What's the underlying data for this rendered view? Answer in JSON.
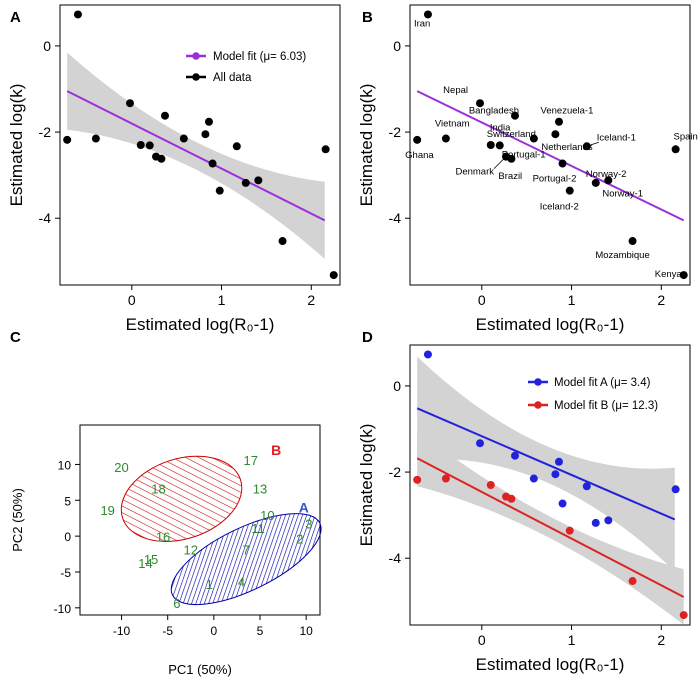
{
  "chart_data": [
    {
      "panel": "A",
      "type": "scatter",
      "xlabel": "Estimated log(R₀-1)",
      "ylabel": "Estimated log(k)",
      "xticks": [
        0,
        1,
        2
      ],
      "yticks": [
        0,
        -2,
        -4
      ],
      "xlim": [
        -0.8,
        2.32
      ],
      "ylim": [
        -5.55,
        0.95
      ],
      "legend": {
        "position": "top-right",
        "fit": "Model fit (μ= 6.03)",
        "data": "All data"
      },
      "fit_line": {
        "x": [
          -0.72,
          2.15
        ],
        "y": [
          -1.05,
          -4.05
        ],
        "color": "#9b30d9"
      },
      "points": [
        {
          "x": -0.72,
          "y": -2.18
        },
        {
          "x": -0.6,
          "y": 0.73
        },
        {
          "x": -0.4,
          "y": -2.15
        },
        {
          "x": -0.02,
          "y": -1.33
        },
        {
          "x": 0.1,
          "y": -2.3
        },
        {
          "x": 0.2,
          "y": -2.31
        },
        {
          "x": 0.27,
          "y": -2.57
        },
        {
          "x": 0.33,
          "y": -2.62
        },
        {
          "x": 0.37,
          "y": -1.62
        },
        {
          "x": 0.58,
          "y": -2.15
        },
        {
          "x": 0.82,
          "y": -2.05
        },
        {
          "x": 0.86,
          "y": -1.76
        },
        {
          "x": 0.9,
          "y": -2.73
        },
        {
          "x": 0.98,
          "y": -3.36
        },
        {
          "x": 1.17,
          "y": -2.33
        },
        {
          "x": 1.27,
          "y": -3.18
        },
        {
          "x": 1.41,
          "y": -3.12
        },
        {
          "x": 1.68,
          "y": -4.53
        },
        {
          "x": 2.16,
          "y": -2.4
        },
        {
          "x": 2.25,
          "y": -5.32
        }
      ]
    },
    {
      "panel": "B",
      "type": "scatter",
      "xlabel": "Estimated log(R₀-1)",
      "ylabel": "Estimated log(k)",
      "xticks": [
        0,
        1,
        2
      ],
      "yticks": [
        0,
        -2,
        -4
      ],
      "xlim": [
        -0.8,
        2.32
      ],
      "ylim": [
        -5.55,
        0.95
      ],
      "fit_line": {
        "x": [
          -0.72,
          2.25
        ],
        "y": [
          -1.05,
          -4.05
        ],
        "color": "#9b30d9"
      },
      "points": [
        {
          "x": -0.6,
          "y": 0.73,
          "label": "Iran"
        },
        {
          "x": -0.72,
          "y": -2.18,
          "label": "Ghana"
        },
        {
          "x": -0.4,
          "y": -2.15,
          "label": "Vietnam"
        },
        {
          "x": -0.02,
          "y": -1.33,
          "label": "Nepal"
        },
        {
          "x": 0.37,
          "y": -1.62,
          "label": "Bangladesh"
        },
        {
          "x": 0.1,
          "y": -2.3,
          "label": "Switzerland"
        },
        {
          "x": 0.58,
          "y": -2.15,
          "label": "India"
        },
        {
          "x": 0.2,
          "y": -2.31,
          "label": "Portugal-1"
        },
        {
          "x": 0.27,
          "y": -2.57,
          "label": "Denmark"
        },
        {
          "x": 0.33,
          "y": -2.62,
          "label": "Brazil"
        },
        {
          "x": 0.86,
          "y": -1.76,
          "label": "Venezuela-1"
        },
        {
          "x": 0.82,
          "y": -2.05,
          "label": "Netherlands"
        },
        {
          "x": 0.9,
          "y": -2.73,
          "label": "Portugal-2"
        },
        {
          "x": 0.98,
          "y": -3.36,
          "label": "Iceland-2"
        },
        {
          "x": 1.17,
          "y": -2.33,
          "label": "Iceland-1"
        },
        {
          "x": 1.27,
          "y": -3.18,
          "label": "Norway-2"
        },
        {
          "x": 1.41,
          "y": -3.12,
          "label": "Norway-1"
        },
        {
          "x": 1.68,
          "y": -4.53,
          "label": "Mozambique"
        },
        {
          "x": 2.16,
          "y": -2.4,
          "label": "Spain"
        },
        {
          "x": 2.25,
          "y": -5.32,
          "label": "Kenya"
        }
      ]
    },
    {
      "panel": "C",
      "type": "scatter",
      "xlabel": "PC1 (50%)",
      "ylabel": "PC2 (50%)",
      "xticks": [
        -10,
        -5,
        0,
        5,
        10
      ],
      "yticks": [
        10,
        5,
        0,
        -5,
        -10
      ],
      "xlim": [
        -14.5,
        11.5
      ],
      "ylim": [
        -11,
        15.5
      ],
      "group_labels": {
        "A": "A",
        "B": "B"
      },
      "points": [
        {
          "label": "20",
          "x": -10,
          "y": 9.5
        },
        {
          "label": "18",
          "x": -6,
          "y": 6.5
        },
        {
          "label": "19",
          "x": -11.5,
          "y": 3.5
        },
        {
          "label": "17",
          "x": 4,
          "y": 10.5
        },
        {
          "label": "13",
          "x": 5,
          "y": 6.5
        },
        {
          "label": "16",
          "x": -5.5,
          "y": -0.2
        },
        {
          "label": "15",
          "x": -6.8,
          "y": -3.3
        },
        {
          "label": "14",
          "x": -7.4,
          "y": -3.9
        },
        {
          "label": "12",
          "x": -2.5,
          "y": -2.0
        },
        {
          "label": "10",
          "x": 5.8,
          "y": 2.8
        },
        {
          "label": "11",
          "x": 4.8,
          "y": 1.0
        },
        {
          "label": "3",
          "x": 10.3,
          "y": 1.6
        },
        {
          "label": "2",
          "x": 9.3,
          "y": -0.5
        },
        {
          "label": "7",
          "x": 3.5,
          "y": -2.0
        },
        {
          "label": "4",
          "x": 3.0,
          "y": -6.5
        },
        {
          "label": "1",
          "x": -0.5,
          "y": -6.8
        },
        {
          "label": "6",
          "x": -4.0,
          "y": -9.5
        }
      ]
    },
    {
      "panel": "D",
      "type": "scatter",
      "xlabel": "Estimated log(R₀-1)",
      "ylabel": "Estimated log(k)",
      "xticks": [
        0,
        1,
        2
      ],
      "yticks": [
        0,
        -2,
        -4
      ],
      "xlim": [
        -0.8,
        2.32
      ],
      "ylim": [
        -5.55,
        0.95
      ],
      "legend": {
        "position": "top-right",
        "fitA": "Model fit A (μ= 3.4)",
        "fitB": "Model fit B (μ= 12.3)"
      },
      "series": [
        {
          "name": "A",
          "color": "#2222dd",
          "fit": {
            "x": [
              -0.72,
              2.15
            ],
            "y": [
              -0.52,
              -3.1
            ]
          },
          "points": [
            {
              "x": -0.6,
              "y": 0.73
            },
            {
              "x": -0.02,
              "y": -1.33
            },
            {
              "x": 0.37,
              "y": -1.62
            },
            {
              "x": 0.58,
              "y": -2.15
            },
            {
              "x": 0.82,
              "y": -2.05
            },
            {
              "x": 0.86,
              "y": -1.76
            },
            {
              "x": 0.9,
              "y": -2.73
            },
            {
              "x": 1.17,
              "y": -2.33
            },
            {
              "x": 1.27,
              "y": -3.18
            },
            {
              "x": 1.41,
              "y": -3.12
            },
            {
              "x": 2.16,
              "y": -2.4
            }
          ]
        },
        {
          "name": "B",
          "color": "#dd2222",
          "fit": {
            "x": [
              -0.72,
              2.25
            ],
            "y": [
              -1.68,
              -4.9
            ]
          },
          "points": [
            {
              "x": -0.72,
              "y": -2.18
            },
            {
              "x": -0.4,
              "y": -2.15
            },
            {
              "x": 0.1,
              "y": -2.3
            },
            {
              "x": 0.27,
              "y": -2.57
            },
            {
              "x": 0.33,
              "y": -2.62
            },
            {
              "x": 0.98,
              "y": -3.36
            },
            {
              "x": 1.68,
              "y": -4.53
            },
            {
              "x": 2.25,
              "y": -5.32
            }
          ]
        }
      ]
    }
  ],
  "panels": {
    "A": "A",
    "B": "B",
    "C": "C",
    "D": "D"
  }
}
